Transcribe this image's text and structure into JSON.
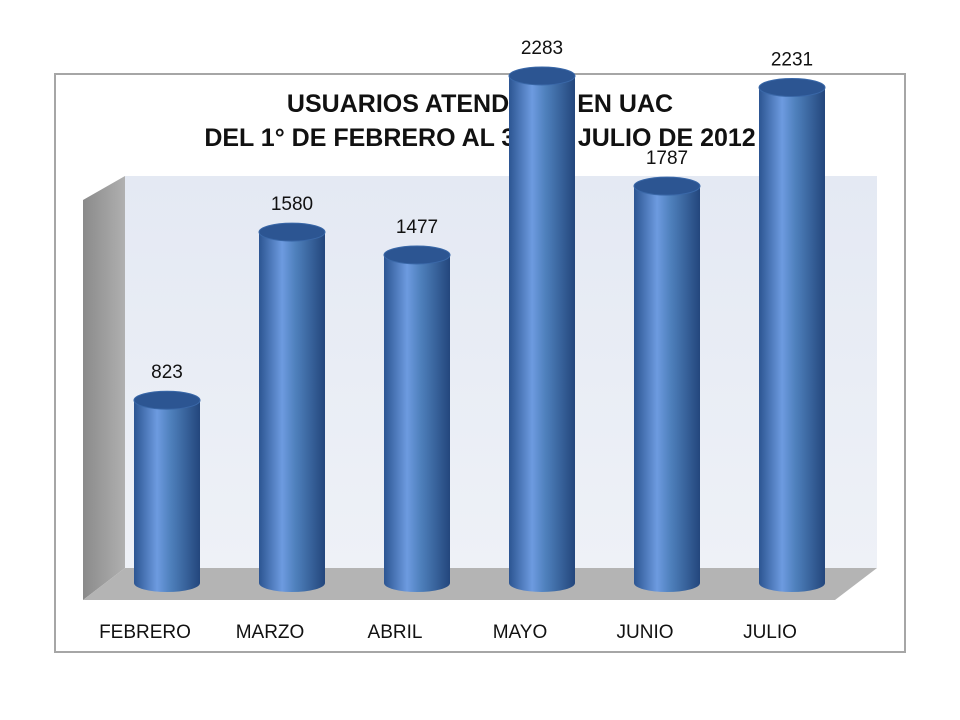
{
  "chart_data": {
    "type": "bar",
    "style": "3d-cylinder",
    "title": [
      "USUARIOS ATENDIDOS EN UAC",
      "DEL 1° DE FEBRERO AL 31 DE JULIO DE 2012"
    ],
    "categories": [
      "FEBRERO",
      "MARZO",
      "ABRIL",
      "MAYO",
      "JUNIO",
      "JULIO"
    ],
    "values": [
      823,
      1580,
      1477,
      2283,
      1787,
      2231
    ],
    "xlabel": "",
    "ylabel": "",
    "ylim": [
      0,
      2600
    ],
    "grid": false,
    "legend": "none",
    "colors": {
      "bar": "#4f81bd",
      "bar_dark": "#2c5592",
      "bar_light": "#6d9be0",
      "wall": "#e9edf5",
      "side_wall": "#9c9c9c",
      "floor": "#b6b6b6"
    }
  }
}
